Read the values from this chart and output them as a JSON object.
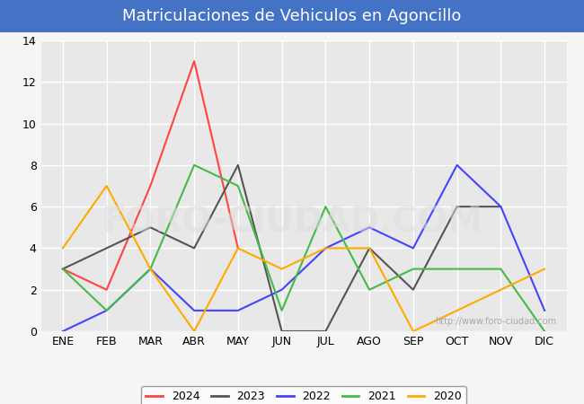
{
  "title": "Matriculaciones de Vehiculos en Agoncillo",
  "title_bg_color": "#4472c4",
  "title_text_color": "white",
  "months": [
    "ENE",
    "FEB",
    "MAR",
    "ABR",
    "MAY",
    "JUN",
    "JUL",
    "AGO",
    "SEP",
    "OCT",
    "NOV",
    "DIC"
  ],
  "ylim": [
    0,
    14
  ],
  "yticks": [
    0,
    2,
    4,
    6,
    8,
    10,
    12,
    14
  ],
  "series": {
    "2024": {
      "color": "#ff4444",
      "values": [
        3,
        2,
        7,
        13,
        4,
        null,
        null,
        null,
        null,
        null,
        null,
        null
      ]
    },
    "2023": {
      "color": "#555555",
      "values": [
        3,
        4,
        5,
        4,
        8,
        0,
        0,
        4,
        2,
        6,
        6,
        null
      ]
    },
    "2022": {
      "color": "#4444ff",
      "values": [
        0,
        1,
        3,
        1,
        1,
        2,
        4,
        5,
        4,
        8,
        6,
        1
      ]
    },
    "2021": {
      "color": "#44bb44",
      "values": [
        3,
        1,
        3,
        8,
        7,
        1,
        6,
        2,
        3,
        3,
        3,
        0
      ]
    },
    "2020": {
      "color": "#ffaa00",
      "values": [
        4,
        7,
        3,
        0,
        4,
        3,
        4,
        4,
        0,
        null,
        2,
        3
      ]
    }
  },
  "legend_order": [
    "2024",
    "2023",
    "2022",
    "2021",
    "2020"
  ],
  "watermark": "http://www.foro-ciudad.com",
  "bg_plot_color": "#e8e8e8",
  "bg_fig_color": "#f5f5f5"
}
